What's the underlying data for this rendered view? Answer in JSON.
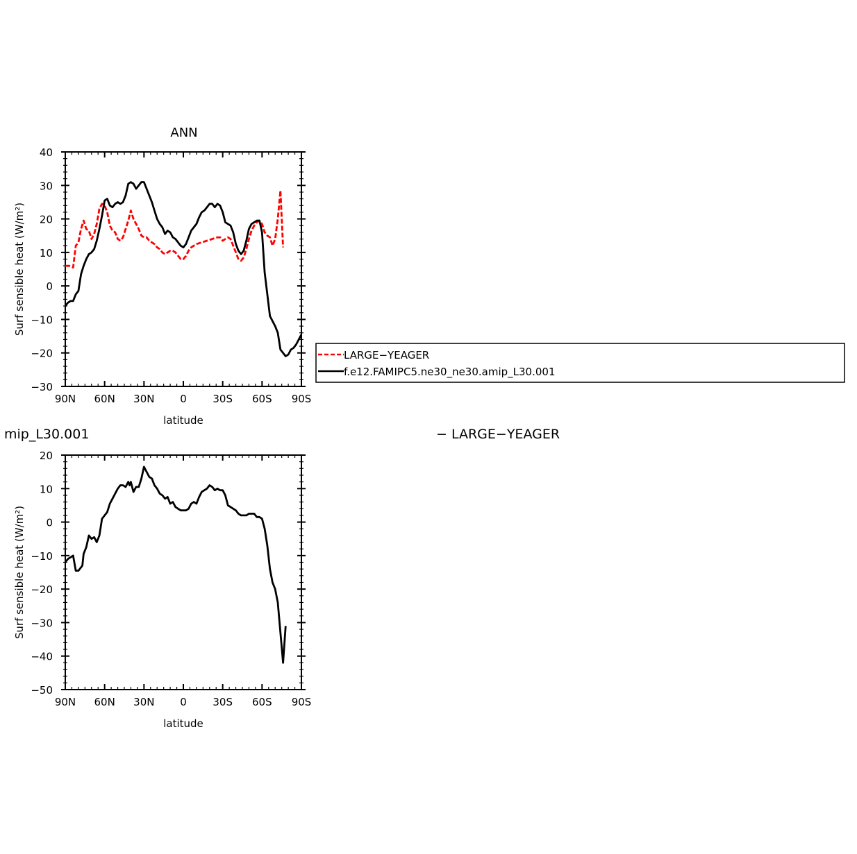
{
  "chart_data": [
    {
      "type": "line",
      "title": "ANN",
      "xlabel": "latitude",
      "ylabel": "Surf sensible heat (W/m²)",
      "xlim": [
        90,
        -90
      ],
      "ylim": [
        -30,
        40
      ],
      "x_ticks": [
        90,
        60,
        30,
        0,
        -30,
        -60,
        -90
      ],
      "x_tick_labels": [
        "90N",
        "60N",
        "30N",
        "0",
        "30S",
        "60S",
        "90S"
      ],
      "y_ticks": [
        -30,
        -20,
        -10,
        0,
        10,
        20,
        30,
        40
      ],
      "y_tick_labels": [
        "−30",
        "−20",
        "−10",
        "0",
        "10",
        "20",
        "30",
        "40"
      ],
      "legend": {
        "placement": "right",
        "entries": [
          "LARGE−YEAGER",
          "f.e12.FAMIPC5.ne30_ne30.amip_L30.001"
        ]
      },
      "series": [
        {
          "name": "LARGE−YEAGER",
          "color": "#ff0000",
          "dash": "dashed",
          "points": [
            [
              90,
              6
            ],
            [
              87,
              6
            ],
            [
              84,
              5.5
            ],
            [
              82,
              12
            ],
            [
              80,
              13
            ],
            [
              78,
              17
            ],
            [
              76,
              19.5
            ],
            [
              74,
              17
            ],
            [
              72,
              16.5
            ],
            [
              70,
              14
            ],
            [
              68,
              15.5
            ],
            [
              66,
              18.5
            ],
            [
              64,
              23
            ],
            [
              62,
              24.5
            ],
            [
              60,
              24
            ],
            [
              58,
              22
            ],
            [
              56,
              18
            ],
            [
              54,
              16.5
            ],
            [
              52,
              16
            ],
            [
              50,
              14
            ],
            [
              48,
              13.5
            ],
            [
              46,
              14.5
            ],
            [
              44,
              17
            ],
            [
              42,
              19.5
            ],
            [
              40,
              22.5
            ],
            [
              38,
              20
            ],
            [
              36,
              18.5
            ],
            [
              34,
              17
            ],
            [
              32,
              15
            ],
            [
              30,
              14.5
            ],
            [
              28,
              14.5
            ],
            [
              26,
              13.5
            ],
            [
              24,
              13
            ],
            [
              22,
              12.5
            ],
            [
              20,
              11.5
            ],
            [
              18,
              11
            ],
            [
              16,
              10
            ],
            [
              14,
              9.5
            ],
            [
              12,
              10
            ],
            [
              10,
              10.5
            ],
            [
              8,
              10.5
            ],
            [
              6,
              10
            ],
            [
              4,
              9
            ],
            [
              2,
              8
            ],
            [
              0,
              8
            ],
            [
              -2,
              9
            ],
            [
              -4,
              10.5
            ],
            [
              -6,
              11.5
            ],
            [
              -8,
              12
            ],
            [
              -10,
              12.5
            ],
            [
              -14,
              13
            ],
            [
              -18,
              13.5
            ],
            [
              -22,
              14
            ],
            [
              -26,
              14.5
            ],
            [
              -28,
              14.5
            ],
            [
              -30,
              13.5
            ],
            [
              -32,
              14
            ],
            [
              -34,
              14.5
            ],
            [
              -36,
              14
            ],
            [
              -38,
              12
            ],
            [
              -40,
              10
            ],
            [
              -42,
              8
            ],
            [
              -44,
              7.5
            ],
            [
              -46,
              8.5
            ],
            [
              -48,
              11
            ],
            [
              -50,
              14
            ],
            [
              -52,
              16.5
            ],
            [
              -54,
              18
            ],
            [
              -56,
              19
            ],
            [
              -58,
              19.5
            ],
            [
              -60,
              18.5
            ],
            [
              -62,
              16
            ],
            [
              -64,
              15
            ],
            [
              -66,
              14.5
            ],
            [
              -68,
              12
            ],
            [
              -70,
              14
            ],
            [
              -72,
              20
            ],
            [
              -74,
              28.5
            ],
            [
              -76,
              11.5
            ]
          ]
        },
        {
          "name": "f.e12.FAMIPC5.ne30_ne30.amip_L30.001",
          "color": "#000000",
          "dash": "solid",
          "points": [
            [
              90,
              -6
            ],
            [
              88,
              -5
            ],
            [
              86,
              -4.5
            ],
            [
              84,
              -4.5
            ],
            [
              82,
              -2.5
            ],
            [
              80,
              -1.5
            ],
            [
              79,
              1
            ],
            [
              78,
              3.5
            ],
            [
              76,
              6
            ],
            [
              74,
              8
            ],
            [
              72,
              9.5
            ],
            [
              70,
              10
            ],
            [
              68,
              11
            ],
            [
              66,
              13.5
            ],
            [
              64,
              17
            ],
            [
              62,
              21
            ],
            [
              60,
              25.5
            ],
            [
              58,
              26
            ],
            [
              56,
              24
            ],
            [
              54,
              23.5
            ],
            [
              52,
              24.5
            ],
            [
              50,
              25
            ],
            [
              48,
              24.5
            ],
            [
              46,
              25
            ],
            [
              44,
              27
            ],
            [
              42,
              30.5
            ],
            [
              40,
              31
            ],
            [
              38,
              30.5
            ],
            [
              36,
              29
            ],
            [
              34,
              30
            ],
            [
              32,
              31
            ],
            [
              30,
              31
            ],
            [
              28,
              29
            ],
            [
              26,
              27
            ],
            [
              24,
              25
            ],
            [
              22,
              22.5
            ],
            [
              20,
              20
            ],
            [
              18,
              18.5
            ],
            [
              16,
              17.5
            ],
            [
              14,
              15.5
            ],
            [
              12,
              16.5
            ],
            [
              10,
              16
            ],
            [
              8,
              14.5
            ],
            [
              6,
              14
            ],
            [
              4,
              13
            ],
            [
              2,
              12
            ],
            [
              0,
              11.5
            ],
            [
              -2,
              12.5
            ],
            [
              -4,
              14.5
            ],
            [
              -6,
              16.5
            ],
            [
              -8,
              17.5
            ],
            [
              -10,
              18.5
            ],
            [
              -12,
              20.5
            ],
            [
              -14,
              22
            ],
            [
              -16,
              22.5
            ],
            [
              -18,
              23.5
            ],
            [
              -20,
              24.5
            ],
            [
              -22,
              24.5
            ],
            [
              -24,
              23.5
            ],
            [
              -26,
              24.5
            ],
            [
              -28,
              24
            ],
            [
              -30,
              22
            ],
            [
              -32,
              19
            ],
            [
              -34,
              18.5
            ],
            [
              -36,
              18
            ],
            [
              -38,
              16
            ],
            [
              -40,
              12.5
            ],
            [
              -42,
              10.5
            ],
            [
              -44,
              9.5
            ],
            [
              -46,
              10.5
            ],
            [
              -48,
              13.5
            ],
            [
              -50,
              17
            ],
            [
              -52,
              18.5
            ],
            [
              -54,
              19
            ],
            [
              -56,
              19.5
            ],
            [
              -58,
              19.5
            ],
            [
              -60,
              16
            ],
            [
              -62,
              4
            ],
            [
              -64,
              -2.5
            ],
            [
              -66,
              -9
            ],
            [
              -68,
              -10.5
            ],
            [
              -70,
              -12
            ],
            [
              -72,
              -14
            ],
            [
              -74,
              -19
            ],
            [
              -76,
              -20
            ],
            [
              -78,
              -21
            ],
            [
              -80,
              -20.5
            ],
            [
              -82,
              -19
            ],
            [
              -84,
              -18.5
            ],
            [
              -86,
              -17.5
            ],
            [
              -88,
              -16
            ],
            [
              -90,
              -14.5
            ]
          ]
        }
      ]
    },
    {
      "type": "line",
      "title": "mip_L30.001",
      "xlabel": "latitude",
      "ylabel": "Surf sensible heat (W/m²)",
      "xlim": [
        90,
        -90
      ],
      "ylim": [
        -50,
        20
      ],
      "x_ticks": [
        90,
        60,
        30,
        0,
        -30,
        -60,
        -90
      ],
      "x_tick_labels": [
        "90N",
        "60N",
        "30N",
        "0",
        "30S",
        "60S",
        "90S"
      ],
      "y_ticks": [
        -50,
        -40,
        -30,
        -20,
        -10,
        0,
        10,
        20
      ],
      "y_tick_labels": [
        "−50",
        "−40",
        "−30",
        "−20",
        "−10",
        "0",
        "10",
        "20"
      ],
      "legend": {
        "placement": "right",
        "entries": [
          "− LARGE−YEAGER"
        ]
      },
      "series": [
        {
          "color": "#000000",
          "dash": "solid",
          "points": [
            [
              90,
              -12
            ],
            [
              88,
              -11
            ],
            [
              86,
              -10.5
            ],
            [
              84,
              -10
            ],
            [
              82,
              -14.5
            ],
            [
              80,
              -14.5
            ],
            [
              78,
              -13.5
            ],
            [
              77,
              -13
            ],
            [
              76,
              -9.5
            ],
            [
              74,
              -7.5
            ],
            [
              72,
              -4
            ],
            [
              70,
              -5
            ],
            [
              68,
              -4.5
            ],
            [
              66,
              -6
            ],
            [
              64,
              -4
            ],
            [
              62,
              1
            ],
            [
              60,
              2
            ],
            [
              58,
              3
            ],
            [
              56,
              5.5
            ],
            [
              54,
              7
            ],
            [
              52,
              8.5
            ],
            [
              50,
              10
            ],
            [
              48,
              11
            ],
            [
              46,
              11
            ],
            [
              44,
              10.5
            ],
            [
              42,
              12
            ],
            [
              41,
              11
            ],
            [
              40,
              12
            ],
            [
              38,
              9
            ],
            [
              36,
              10.5
            ],
            [
              34,
              10.5
            ],
            [
              32,
              13
            ],
            [
              30,
              16.5
            ],
            [
              28,
              15
            ],
            [
              26,
              13.5
            ],
            [
              24,
              13
            ],
            [
              22,
              11
            ],
            [
              20,
              10
            ],
            [
              18,
              8.5
            ],
            [
              16,
              8
            ],
            [
              14,
              7
            ],
            [
              12,
              7.5
            ],
            [
              10,
              5.5
            ],
            [
              8,
              6
            ],
            [
              6,
              4.5
            ],
            [
              4,
              4
            ],
            [
              2,
              3.5
            ],
            [
              0,
              3.5
            ],
            [
              -2,
              3.5
            ],
            [
              -4,
              4
            ],
            [
              -6,
              5.5
            ],
            [
              -8,
              6
            ],
            [
              -10,
              5.5
            ],
            [
              -12,
              7.5
            ],
            [
              -14,
              9
            ],
            [
              -16,
              9.5
            ],
            [
              -18,
              10
            ],
            [
              -20,
              11
            ],
            [
              -22,
              10.5
            ],
            [
              -24,
              9.5
            ],
            [
              -26,
              10
            ],
            [
              -28,
              9.5
            ],
            [
              -30,
              9.5
            ],
            [
              -32,
              8
            ],
            [
              -34,
              5
            ],
            [
              -36,
              4.5
            ],
            [
              -38,
              4
            ],
            [
              -40,
              3.5
            ],
            [
              -42,
              2.5
            ],
            [
              -44,
              2
            ],
            [
              -46,
              2
            ],
            [
              -48,
              2
            ],
            [
              -50,
              2.5
            ],
            [
              -52,
              2.5
            ],
            [
              -54,
              2.5
            ],
            [
              -56,
              1.5
            ],
            [
              -58,
              1.5
            ],
            [
              -60,
              1
            ],
            [
              -62,
              -2
            ],
            [
              -64,
              -7
            ],
            [
              -66,
              -14
            ],
            [
              -68,
              -18
            ],
            [
              -70,
              -20
            ],
            [
              -72,
              -24
            ],
            [
              -74,
              -33
            ],
            [
              -76,
              -42
            ],
            [
              -78,
              -31
            ]
          ]
        }
      ]
    }
  ]
}
